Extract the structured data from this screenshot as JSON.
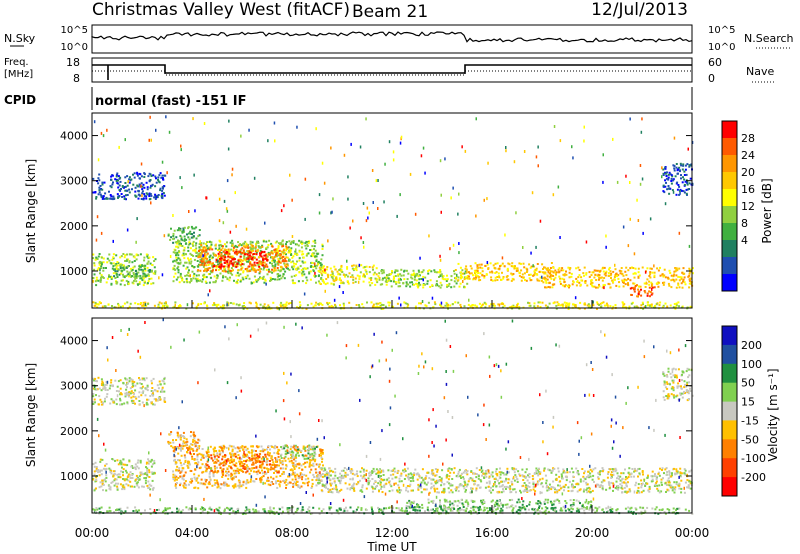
{
  "header": {
    "station": "Christmas Valley West (fitACF)",
    "beam": "Beam 21",
    "date": "12/Jul/2013"
  },
  "params": {
    "nsky_label": "N.Sky",
    "nsky_ticks": [
      "10^5",
      "10^0"
    ],
    "nsky_right_ticks": [
      "10^5",
      "10^0"
    ],
    "nsearch_label": "N.Search",
    "freq_label_1": "Freq.",
    "freq_label_2": "[MHz]",
    "freq_ticks": [
      "18",
      "8"
    ],
    "nave_ticks": [
      "60",
      "0"
    ],
    "nave_label": "Nave",
    "cpid_label": "CPID",
    "cpid_value": "normal (fast) -151 IF"
  },
  "chart_data": [
    {
      "type": "heatmap",
      "title": "",
      "xlabel": "Time UT",
      "ylabel": "Slant Range [km]",
      "x_ticks": [
        "00:00",
        "04:00",
        "08:00",
        "12:00",
        "16:00",
        "20:00",
        "00:00"
      ],
      "y_ticks": [
        "4000",
        "3000",
        "2000",
        "1000"
      ],
      "xlim_hours": [
        0,
        24
      ],
      "ylim": [
        180,
        4500
      ],
      "colorbar": {
        "label": "Power [dB]",
        "ticks": [
          "28",
          "24",
          "20",
          "16",
          "12",
          "8",
          "4"
        ],
        "colors": [
          "#ff0000",
          "#ff5a00",
          "#ff9600",
          "#ffc800",
          "#ffff00",
          "#90d040",
          "#40b040",
          "#208060",
          "#1f4fb0",
          "#0000ff"
        ]
      },
      "bands": [
        {
          "t0": 0.0,
          "t1": 24.0,
          "r0": 180,
          "r1": 330,
          "level": 4
        },
        {
          "t0": 0.0,
          "t1": 2.5,
          "r0": 700,
          "r1": 1400,
          "level": 5
        },
        {
          "t0": 0.8,
          "t1": 2.5,
          "r0": 900,
          "r1": 1150,
          "level": 6
        },
        {
          "t0": 0.0,
          "t1": 2.9,
          "r0": 2600,
          "r1": 3200,
          "level": 8
        },
        {
          "t0": 3.0,
          "t1": 4.3,
          "r0": 1600,
          "r1": 2000,
          "level": 6
        },
        {
          "t0": 3.2,
          "t1": 9.2,
          "r0": 750,
          "r1": 1700,
          "level": 5
        },
        {
          "t0": 4.2,
          "t1": 7.8,
          "r0": 1000,
          "r1": 1600,
          "level": 2
        },
        {
          "t0": 4.8,
          "t1": 7.0,
          "r0": 1100,
          "r1": 1450,
          "level": 0
        },
        {
          "t0": 9.0,
          "t1": 11.5,
          "r0": 700,
          "r1": 1150,
          "level": 4
        },
        {
          "t0": 11.5,
          "t1": 15.0,
          "r0": 650,
          "r1": 1050,
          "level": 5
        },
        {
          "t0": 14.5,
          "t1": 18.5,
          "r0": 800,
          "r1": 1200,
          "level": 3
        },
        {
          "t0": 18.0,
          "t1": 24.0,
          "r0": 650,
          "r1": 1100,
          "level": 3
        },
        {
          "t0": 21.5,
          "t1": 22.5,
          "r0": 450,
          "r1": 700,
          "level": 1
        },
        {
          "t0": 22.8,
          "t1": 24.0,
          "r0": 2700,
          "r1": 3400,
          "level": 8
        }
      ]
    },
    {
      "type": "heatmap",
      "title": "",
      "xlabel": "Time UT",
      "ylabel": "Slant Range [km]",
      "x_ticks": [
        "00:00",
        "04:00",
        "08:00",
        "12:00",
        "16:00",
        "20:00",
        "00:00"
      ],
      "y_ticks": [
        "4000",
        "3000",
        "2000",
        "1000"
      ],
      "xlim_hours": [
        0,
        24
      ],
      "ylim": [
        180,
        4500
      ],
      "colorbar": {
        "label": "Velocity [m s⁻¹]",
        "ticks": [
          "200",
          "100",
          "50",
          "15",
          "-15",
          "-50",
          "-100",
          "-200"
        ],
        "colors": [
          "#1010c0",
          "#2050a0",
          "#209040",
          "#80d050",
          "#c8c8c0",
          "#ffc000",
          "#ff8000",
          "#ff4000",
          "#ff0000"
        ]
      },
      "bands": [
        {
          "t0": 0.0,
          "t1": 24.0,
          "r0": 180,
          "r1": 330,
          "level": 3
        },
        {
          "t0": 0.0,
          "t1": 2.5,
          "r0": 700,
          "r1": 1400,
          "level": 4
        },
        {
          "t0": 0.0,
          "t1": 2.9,
          "r0": 2600,
          "r1": 3200,
          "level": 4
        },
        {
          "t0": 3.0,
          "t1": 4.3,
          "r0": 1600,
          "r1": 2000,
          "level": 5
        },
        {
          "t0": 3.2,
          "t1": 9.2,
          "r0": 750,
          "r1": 1700,
          "level": 5
        },
        {
          "t0": 4.5,
          "t1": 7.5,
          "r0": 1100,
          "r1": 1500,
          "level": 6
        },
        {
          "t0": 7.5,
          "t1": 9.0,
          "r0": 1400,
          "r1": 1700,
          "level": 3
        },
        {
          "t0": 9.0,
          "t1": 24.0,
          "r0": 650,
          "r1": 1200,
          "level": 4
        },
        {
          "t0": 12.5,
          "t1": 20.0,
          "r0": 250,
          "r1": 500,
          "level": 3
        },
        {
          "t0": 22.8,
          "t1": 24.0,
          "r0": 2700,
          "r1": 3400,
          "level": 4
        }
      ]
    }
  ]
}
